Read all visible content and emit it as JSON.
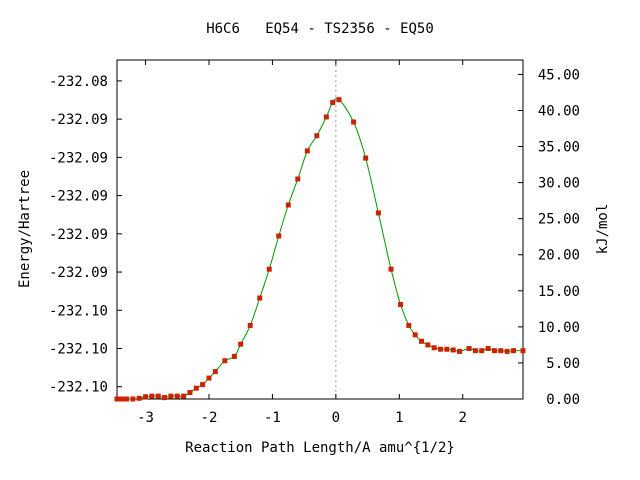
{
  "chart_data": {
    "type": "line",
    "title": "H6C6   EQ54 - TS2356 - EQ50",
    "xlabel": "Reaction Path Length/A amu^{1/2}",
    "ylabel_left": "Energy/Hartree",
    "ylabel_right": "kJ/mol",
    "xlim": [
      -3.45,
      2.95
    ],
    "ylim_right": [
      0,
      47
    ],
    "x_ticks": [
      -3,
      -2,
      -1,
      0,
      1,
      2
    ],
    "x_tick_labels": [
      "-3",
      "-2",
      "-1",
      "0",
      "1",
      "2"
    ],
    "right_ticks": [
      0,
      5,
      10,
      15,
      20,
      25,
      30,
      35,
      40,
      45
    ],
    "right_tick_labels": [
      "0.00",
      "5.00",
      "10.00",
      "15.00",
      "20.00",
      "25.00",
      "30.00",
      "35.00",
      "40.00",
      "45.00"
    ],
    "left_ticks_kj": [
      1.7,
      7.0,
      12.3,
      17.6,
      22.9,
      28.2,
      33.5,
      38.8,
      44.1
    ],
    "left_tick_labels": [
      "-232.10",
      "-232.10",
      "-232.10",
      "-232.09",
      "-232.09",
      "-232.09",
      "-232.09",
      "-232.09",
      "-232.08"
    ],
    "ts_x": 0,
    "grid": false,
    "line_color": "#009900",
    "marker_color": "#cc2200",
    "ts_line_color": "#999999",
    "series": [
      {
        "x": [
          -3.45,
          -3.38,
          -3.3,
          -3.2,
          -3.1,
          -3.0,
          -2.9,
          -2.8,
          -2.7,
          -2.6,
          -2.5,
          -2.4,
          -2.3,
          -2.2,
          -2.1,
          -2.0,
          -1.9,
          -1.75,
          -1.6,
          -1.5,
          -1.35,
          -1.2,
          -1.05,
          -0.9,
          -0.75,
          -0.6,
          -0.45,
          -0.3,
          -0.15,
          -0.05,
          0.05,
          0.28,
          0.47,
          0.67,
          0.87,
          1.02,
          1.15,
          1.25,
          1.35,
          1.45,
          1.55,
          1.65,
          1.75,
          1.85,
          1.95,
          2.1,
          2.2,
          2.3,
          2.4,
          2.5,
          2.6,
          2.7,
          2.8,
          2.95
        ],
        "y": [
          0.0,
          0.0,
          0.0,
          0.0,
          0.1,
          0.3,
          0.4,
          0.4,
          0.2,
          0.4,
          0.4,
          0.4,
          0.9,
          1.5,
          2.0,
          2.9,
          3.8,
          5.3,
          5.9,
          7.6,
          10.2,
          14.0,
          18.0,
          22.6,
          26.9,
          30.5,
          34.4,
          36.5,
          39.1,
          41.1,
          41.5,
          38.4,
          33.4,
          25.8,
          18.0,
          13.1,
          10.2,
          8.9,
          8.0,
          7.5,
          7.1,
          6.9,
          6.9,
          6.8,
          6.6,
          7.0,
          6.7,
          6.7,
          7.0,
          6.7,
          6.7,
          6.6,
          6.7,
          6.7
        ]
      }
    ]
  }
}
